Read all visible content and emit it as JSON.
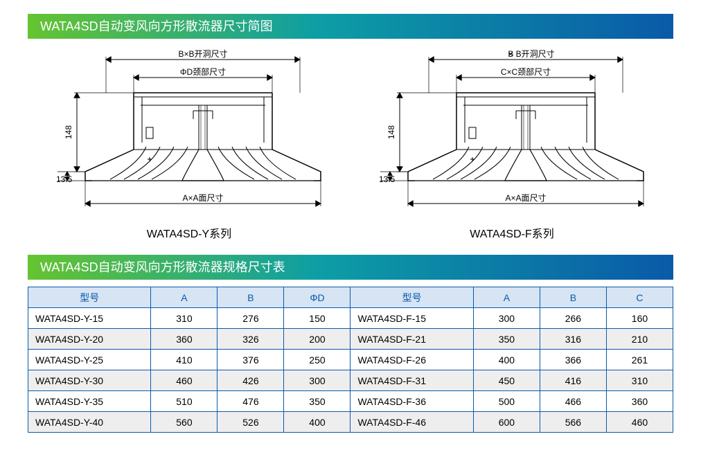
{
  "colors": {
    "banner_grad_start": "#66c430",
    "banner_grad_mid": "#0d9ea5",
    "banner_grad_end": "#0a5aa8",
    "header_bg": "#d6e4f4",
    "header_text": "#0a5aa8",
    "row_alt_bg": "#eeeeee",
    "row_bg": "#ffffff",
    "border": "#0a5aa8",
    "text": "#000000",
    "diagram_stroke": "#000000"
  },
  "banners": {
    "diagram": "WATA4SD自动变风向方形散流器尺寸简图",
    "table": "WATA4SD自动变风向方形散流器规格尺寸表"
  },
  "diagrams": {
    "left": {
      "caption": "WATA4SD-Y系列",
      "h_label": "148",
      "base_label": "13.5",
      "top_dim": "B×B开洞尺寸",
      "neck_dim": "ΦD颈部尺寸",
      "face_dim": "A×A面尺寸"
    },
    "right": {
      "caption": "WATA4SD-F系列",
      "h_label": "148",
      "base_label": "13.5",
      "top_dim": "B  B开洞尺寸",
      "top_dim_x": "×",
      "neck_dim": "C×C颈部尺寸",
      "face_dim": "A×A面尺寸"
    }
  },
  "table": {
    "headers_left": [
      "型号",
      "A",
      "B",
      "ΦD"
    ],
    "headers_right": [
      "型号",
      "A",
      "B",
      "C"
    ],
    "col_widths_pct": [
      16,
      8.66,
      8.66,
      8.66,
      16,
      8.66,
      8.66,
      8.66
    ],
    "rows": [
      {
        "l": [
          "WATA4SD-Y-15",
          "310",
          "276",
          "150"
        ],
        "r": [
          "WATA4SD-F-15",
          "300",
          "266",
          "160"
        ]
      },
      {
        "l": [
          "WATA4SD-Y-20",
          "360",
          "326",
          "200"
        ],
        "r": [
          "WATA4SD-F-21",
          "350",
          "316",
          "210"
        ]
      },
      {
        "l": [
          "WATA4SD-Y-25",
          "410",
          "376",
          "250"
        ],
        "r": [
          "WATA4SD-F-26",
          "400",
          "366",
          "261"
        ]
      },
      {
        "l": [
          "WATA4SD-Y-30",
          "460",
          "426",
          "300"
        ],
        "r": [
          "WATA4SD-F-31",
          "450",
          "416",
          "310"
        ]
      },
      {
        "l": [
          "WATA4SD-Y-35",
          "510",
          "476",
          "350"
        ],
        "r": [
          "WATA4SD-F-36",
          "500",
          "466",
          "360"
        ]
      },
      {
        "l": [
          "WATA4SD-Y-40",
          "560",
          "526",
          "400"
        ],
        "r": [
          "WATA4SD-F-46",
          "600",
          "566",
          "460"
        ]
      }
    ]
  }
}
